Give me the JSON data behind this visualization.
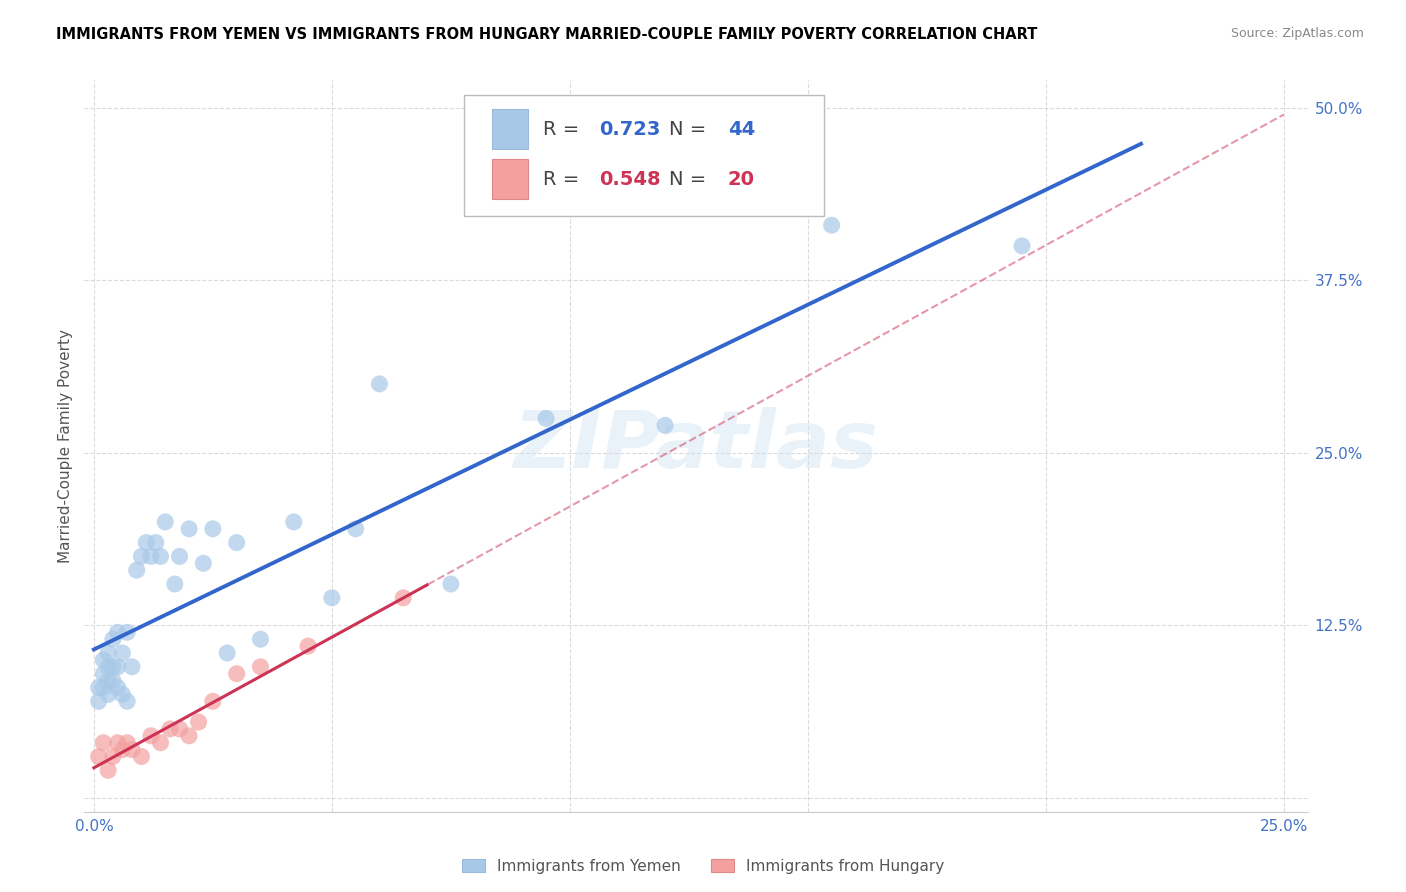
{
  "title": "IMMIGRANTS FROM YEMEN VS IMMIGRANTS FROM HUNGARY MARRIED-COUPLE FAMILY POVERTY CORRELATION CHART",
  "source": "Source: ZipAtlas.com",
  "ylabel_label": "Married-Couple Family Poverty",
  "xlim": [
    -0.002,
    0.255
  ],
  "ylim": [
    -0.01,
    0.52
  ],
  "xticks": [
    0.0,
    0.05,
    0.1,
    0.15,
    0.2,
    0.25
  ],
  "yticks": [
    0.0,
    0.125,
    0.25,
    0.375,
    0.5
  ],
  "xtick_labels": [
    "0.0%",
    "",
    "",
    "",
    "",
    "25.0%"
  ],
  "ytick_labels": [
    "",
    "12.5%",
    "25.0%",
    "37.5%",
    "50.0%"
  ],
  "yemen_R": 0.723,
  "yemen_N": 44,
  "hungary_R": 0.548,
  "hungary_N": 20,
  "yemen_color": "#a8c8e8",
  "hungary_color": "#f4a0a0",
  "yemen_line_color": "#3366cc",
  "hungary_line_color": "#cc3355",
  "legend_label_yemen": "Immigrants from Yemen",
  "legend_label_hungary": "Immigrants from Hungary",
  "background_color": "#ffffff",
  "watermark": "ZIPatlas",
  "yemen_x": [
    0.001,
    0.001,
    0.002,
    0.002,
    0.002,
    0.003,
    0.003,
    0.003,
    0.003,
    0.004,
    0.004,
    0.004,
    0.005,
    0.005,
    0.005,
    0.006,
    0.006,
    0.007,
    0.007,
    0.008,
    0.009,
    0.01,
    0.011,
    0.012,
    0.013,
    0.014,
    0.015,
    0.017,
    0.018,
    0.02,
    0.023,
    0.025,
    0.028,
    0.03,
    0.035,
    0.042,
    0.05,
    0.055,
    0.06,
    0.075,
    0.095,
    0.12,
    0.155,
    0.195
  ],
  "yemen_y": [
    0.07,
    0.08,
    0.08,
    0.09,
    0.1,
    0.075,
    0.085,
    0.095,
    0.105,
    0.085,
    0.095,
    0.115,
    0.08,
    0.095,
    0.12,
    0.075,
    0.105,
    0.07,
    0.12,
    0.095,
    0.165,
    0.175,
    0.185,
    0.175,
    0.185,
    0.175,
    0.2,
    0.155,
    0.175,
    0.195,
    0.17,
    0.195,
    0.105,
    0.185,
    0.115,
    0.2,
    0.145,
    0.195,
    0.3,
    0.155,
    0.275,
    0.27,
    0.415,
    0.4
  ],
  "hungary_x": [
    0.001,
    0.002,
    0.003,
    0.004,
    0.005,
    0.006,
    0.007,
    0.008,
    0.01,
    0.012,
    0.014,
    0.016,
    0.018,
    0.02,
    0.022,
    0.025,
    0.03,
    0.035,
    0.045,
    0.065
  ],
  "hungary_y": [
    0.03,
    0.04,
    0.02,
    0.03,
    0.04,
    0.035,
    0.04,
    0.035,
    0.03,
    0.045,
    0.04,
    0.05,
    0.05,
    0.045,
    0.055,
    0.07,
    0.09,
    0.095,
    0.11,
    0.145
  ],
  "tick_color": "#4472c4",
  "grid_color": "#d3d3d3",
  "title_fontsize": 10.5,
  "source_fontsize": 9,
  "tick_fontsize": 11,
  "ylabel_fontsize": 11
}
